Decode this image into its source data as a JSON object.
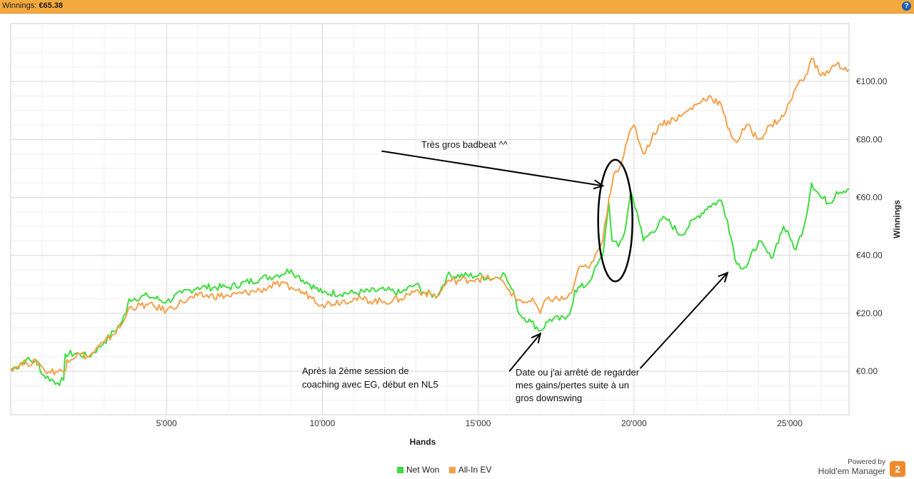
{
  "header": {
    "label": "Winnings:",
    "value": "€65.38",
    "help": "?"
  },
  "colors": {
    "net_won": "#3ddc3d",
    "all_in_ev": "#f5a04a",
    "header_bg": "#f4a93f"
  },
  "legend": {
    "net_won": "Net Won",
    "all_in_ev": "All-In EV"
  },
  "brand": {
    "powered": "Powered by",
    "name": "Hold'em Manager",
    "logo": "2"
  },
  "annotations": {
    "badbeat": "Très gros badbeat ^^",
    "coaching": [
      "Après la 2ème session de",
      "coaching avec EG, début en NL5"
    ],
    "date": [
      "Date ou j'ai arrêté de regarder",
      "mes gains/pertes suite à un",
      "gros downswing"
    ]
  },
  "chart_data": {
    "type": "line",
    "xlabel": "Hands",
    "ylabel": "Winnings",
    "xlim": [
      0,
      26900
    ],
    "ylim": [
      -15,
      120
    ],
    "x_ticks": [
      5000,
      10000,
      15000,
      20000,
      25000
    ],
    "x_tick_labels": [
      "5'000",
      "10'000",
      "15'000",
      "20'000",
      "25'000"
    ],
    "y_ticks": [
      0,
      20,
      40,
      60,
      80,
      100
    ],
    "y_tick_labels": [
      "€0.00",
      "€20.00",
      "€40.00",
      "€60.00",
      "€80.00",
      "€100.00"
    ],
    "grid": true,
    "legend_position": "bottom",
    "series": [
      {
        "name": "Net Won",
        "color": "#3ddc3d",
        "points": [
          [
            0,
            0.5
          ],
          [
            500,
            4
          ],
          [
            900,
            3
          ],
          [
            1000,
            -1
          ],
          [
            1500,
            -4
          ],
          [
            1700,
            -3
          ],
          [
            1750,
            6
          ],
          [
            2200,
            6
          ],
          [
            2500,
            5
          ],
          [
            3000,
            10
          ],
          [
            3500,
            16
          ],
          [
            3700,
            20
          ],
          [
            3800,
            25
          ],
          [
            4400,
            26
          ],
          [
            5000,
            24
          ],
          [
            5500,
            27
          ],
          [
            6000,
            29
          ],
          [
            7000,
            29
          ],
          [
            8000,
            32
          ],
          [
            8500,
            33
          ],
          [
            9000,
            35
          ],
          [
            9200,
            33
          ],
          [
            9600,
            30
          ],
          [
            10000,
            27
          ],
          [
            11000,
            27
          ],
          [
            12000,
            28
          ],
          [
            12500,
            27
          ],
          [
            13000,
            30
          ],
          [
            13300,
            27
          ],
          [
            13700,
            26
          ],
          [
            14000,
            33
          ],
          [
            15000,
            33
          ],
          [
            15500,
            32
          ],
          [
            15800,
            34
          ],
          [
            16000,
            30
          ],
          [
            16200,
            25
          ],
          [
            16300,
            20
          ],
          [
            16700,
            17
          ],
          [
            17000,
            14
          ],
          [
            17300,
            18
          ],
          [
            17800,
            18
          ],
          [
            18000,
            22
          ],
          [
            18100,
            28
          ],
          [
            18500,
            30
          ],
          [
            18700,
            34
          ],
          [
            19000,
            40
          ],
          [
            19100,
            50
          ],
          [
            19200,
            58
          ],
          [
            19300,
            45
          ],
          [
            19500,
            43
          ],
          [
            19700,
            48
          ],
          [
            19800,
            55
          ],
          [
            19900,
            62
          ],
          [
            20100,
            55
          ],
          [
            20300,
            45
          ],
          [
            21000,
            53
          ],
          [
            21500,
            47
          ],
          [
            22000,
            53
          ],
          [
            22400,
            57
          ],
          [
            22800,
            59
          ],
          [
            23000,
            52
          ],
          [
            23300,
            37
          ],
          [
            23600,
            36
          ],
          [
            24000,
            45
          ],
          [
            24400,
            39
          ],
          [
            24800,
            50
          ],
          [
            25000,
            46
          ],
          [
            25200,
            42
          ],
          [
            25500,
            52
          ],
          [
            25700,
            65
          ],
          [
            26000,
            60
          ],
          [
            26300,
            58
          ],
          [
            26500,
            62
          ],
          [
            26900,
            63
          ]
        ]
      },
      {
        "name": "All-In EV",
        "color": "#f5a04a",
        "points": [
          [
            0,
            1
          ],
          [
            500,
            3
          ],
          [
            900,
            3
          ],
          [
            1100,
            0
          ],
          [
            1750,
            0
          ],
          [
            1800,
            4
          ],
          [
            2200,
            6
          ],
          [
            2500,
            5
          ],
          [
            3000,
            10
          ],
          [
            3500,
            15
          ],
          [
            3700,
            19
          ],
          [
            3800,
            22
          ],
          [
            4400,
            23
          ],
          [
            5000,
            21
          ],
          [
            5500,
            24
          ],
          [
            6000,
            26
          ],
          [
            7000,
            26
          ],
          [
            8000,
            28
          ],
          [
            8500,
            30
          ],
          [
            9000,
            29
          ],
          [
            9200,
            28
          ],
          [
            9600,
            26
          ],
          [
            10000,
            23
          ],
          [
            11000,
            25
          ],
          [
            12000,
            24
          ],
          [
            12500,
            25
          ],
          [
            13000,
            28
          ],
          [
            13300,
            27
          ],
          [
            13700,
            26
          ],
          [
            14000,
            31
          ],
          [
            15000,
            32
          ],
          [
            15500,
            32
          ],
          [
            15800,
            31
          ],
          [
            16000,
            28
          ],
          [
            16200,
            25
          ],
          [
            16500,
            24
          ],
          [
            16800,
            24
          ],
          [
            17000,
            20
          ],
          [
            17200,
            25
          ],
          [
            17800,
            25
          ],
          [
            18000,
            27
          ],
          [
            18200,
            35
          ],
          [
            18500,
            36
          ],
          [
            18700,
            38
          ],
          [
            19000,
            45
          ],
          [
            19200,
            60
          ],
          [
            19350,
            68
          ],
          [
            19600,
            72
          ],
          [
            19800,
            80
          ],
          [
            20000,
            85
          ],
          [
            20300,
            75
          ],
          [
            20800,
            85
          ],
          [
            21500,
            88
          ],
          [
            22000,
            92
          ],
          [
            22400,
            95
          ],
          [
            22800,
            92
          ],
          [
            23000,
            84
          ],
          [
            23300,
            79
          ],
          [
            23600,
            85
          ],
          [
            24000,
            80
          ],
          [
            24400,
            85
          ],
          [
            24800,
            88
          ],
          [
            25000,
            93
          ],
          [
            25200,
            98
          ],
          [
            25500,
            102
          ],
          [
            25700,
            108
          ],
          [
            26000,
            102
          ],
          [
            26300,
            104
          ],
          [
            26500,
            106
          ],
          [
            26900,
            104
          ]
        ]
      }
    ],
    "overlays": {
      "ellipse_center": [
        19400,
        52
      ],
      "ellipse_radius": [
        550,
        21
      ],
      "arrows": [
        {
          "from": [
            16000,
            0
          ],
          "to": [
            17000,
            13
          ]
        },
        {
          "from": [
            11900,
            76
          ],
          "to": [
            19000,
            64
          ]
        },
        {
          "from": [
            20200,
            1
          ],
          "to": [
            23000,
            34
          ]
        }
      ]
    }
  }
}
